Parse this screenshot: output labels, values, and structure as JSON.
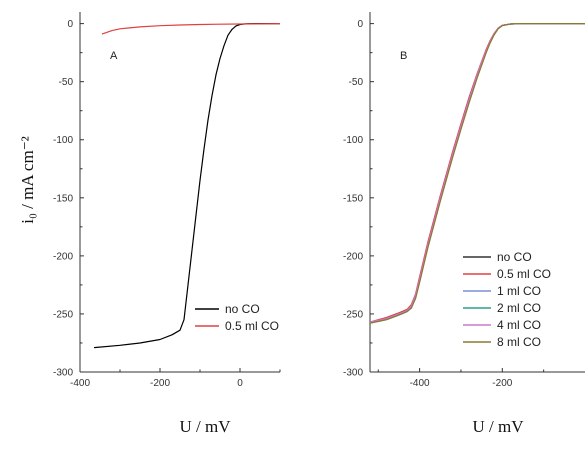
{
  "chart_data": [
    {
      "type": "line",
      "panel_label": "A",
      "xlabel": "U / mV",
      "ylabel": "i₀ / mA cm⁻²",
      "xlim": [
        -400,
        100
      ],
      "ylim": [
        -300,
        10
      ],
      "xticks": [
        -400,
        -200,
        0
      ],
      "yticks": [
        0,
        -50,
        -100,
        -150,
        -200,
        -250,
        -300
      ],
      "legend_position": "bottom-right",
      "series": [
        {
          "name": "no CO",
          "color": "#000000",
          "x": [
            -365,
            -300,
            -250,
            -200,
            -170,
            -150,
            -140,
            -130,
            -120,
            -110,
            -100,
            -90,
            -80,
            -70,
            -60,
            -50,
            -40,
            -30,
            -20,
            -10,
            0,
            10,
            20,
            40,
            60,
            100
          ],
          "y": [
            -279,
            -277,
            -275,
            -272,
            -268,
            -264,
            -255,
            -225,
            -195,
            -165,
            -135,
            -108,
            -83,
            -62,
            -44,
            -30,
            -19,
            -10,
            -5,
            -2,
            -0.8,
            -0.3,
            -0.1,
            0,
            0,
            0
          ]
        },
        {
          "name": "0.5 ml CO",
          "color": "#e04040",
          "x": [
            -345,
            -320,
            -300,
            -250,
            -200,
            -150,
            -100,
            -50,
            0,
            50,
            100
          ],
          "y": [
            -9,
            -6,
            -4.5,
            -2.8,
            -1.8,
            -1.2,
            -0.8,
            -0.5,
            -0.3,
            -0.15,
            0
          ]
        }
      ]
    },
    {
      "type": "line",
      "panel_label": "B",
      "xlabel": "U / mV",
      "xlim": [
        -520,
        0
      ],
      "ylim": [
        -300,
        10
      ],
      "xticks": [
        -400,
        -200
      ],
      "yticks": [
        0,
        -50,
        -100,
        -150,
        -200,
        -250,
        -300
      ],
      "legend_position": "bottom-right",
      "series": [
        {
          "name": "no CO",
          "color": "#333333",
          "x": [
            -520,
            -480,
            -450,
            -430,
            -420,
            -410,
            -400,
            -380,
            -350,
            -320,
            -300,
            -280,
            -260,
            -240,
            -230,
            -220,
            -210,
            -200,
            -180,
            -150,
            -100,
            -50,
            0
          ],
          "y": [
            -257,
            -254,
            -250,
            -247,
            -244,
            -235,
            -220,
            -190,
            -150,
            -112,
            -88,
            -65,
            -43,
            -24,
            -16,
            -9,
            -4,
            -1.5,
            -0.3,
            0,
            0,
            0,
            0
          ]
        },
        {
          "name": "0.5 ml CO",
          "color": "#e04040",
          "x": [
            -520,
            -480,
            -450,
            -430,
            -420,
            -410,
            -400,
            -380,
            -350,
            -320,
            -300,
            -280,
            -260,
            -240,
            -230,
            -220,
            -210,
            -200,
            -180,
            -150,
            -100,
            -50,
            0
          ],
          "y": [
            -257,
            -253,
            -249,
            -246,
            -242,
            -233,
            -218,
            -188,
            -148,
            -110,
            -86,
            -63,
            -42,
            -23,
            -15,
            -8.5,
            -3.8,
            -1.4,
            -0.3,
            0,
            0,
            0,
            0
          ]
        },
        {
          "name": "1 ml CO",
          "color": "#7a8fd6",
          "x": [
            -520,
            -480,
            -450,
            -430,
            -420,
            -410,
            -400,
            -380,
            -350,
            -320,
            -300,
            -280,
            -260,
            -240,
            -230,
            -220,
            -210,
            -200,
            -180,
            -150,
            -100,
            -50,
            0
          ],
          "y": [
            -258,
            -254,
            -250,
            -247,
            -244,
            -235,
            -221,
            -191,
            -151,
            -113,
            -89,
            -66,
            -44,
            -25,
            -16,
            -9,
            -4,
            -1.5,
            -0.3,
            0,
            0,
            0,
            0
          ]
        },
        {
          "name": "2 ml CO",
          "color": "#2e9e8a",
          "x": [
            -520,
            -480,
            -450,
            -430,
            -420,
            -410,
            -400,
            -380,
            -350,
            -320,
            -300,
            -280,
            -260,
            -240,
            -230,
            -220,
            -210,
            -200,
            -180,
            -150,
            -100,
            -50,
            0
          ],
          "y": [
            -258,
            -255,
            -251,
            -248,
            -245,
            -236,
            -222,
            -192,
            -152,
            -114,
            -90,
            -67,
            -45,
            -25,
            -17,
            -9.5,
            -4.2,
            -1.6,
            -0.3,
            0,
            0,
            0,
            0
          ]
        },
        {
          "name": "4 ml CO",
          "color": "#c77ac7",
          "x": [
            -520,
            -480,
            -450,
            -430,
            -420,
            -410,
            -400,
            -380,
            -350,
            -320,
            -300,
            -280,
            -260,
            -240,
            -230,
            -220,
            -210,
            -200,
            -180,
            -150,
            -100,
            -50,
            0
          ],
          "y": [
            -257,
            -254,
            -250,
            -247,
            -243,
            -234,
            -220,
            -190,
            -150,
            -112,
            -88,
            -65,
            -43,
            -24,
            -16,
            -9,
            -4,
            -1.5,
            -0.3,
            0,
            0,
            0,
            0
          ]
        },
        {
          "name": "8 ml CO",
          "color": "#8a7a2e",
          "x": [
            -520,
            -480,
            -450,
            -430,
            -420,
            -410,
            -400,
            -380,
            -350,
            -320,
            -300,
            -280,
            -260,
            -240,
            -230,
            -220,
            -210,
            -200,
            -180,
            -150,
            -100,
            -50,
            0
          ],
          "y": [
            -258,
            -255,
            -251,
            -248,
            -245,
            -237,
            -223,
            -193,
            -153,
            -115,
            -91,
            -68,
            -46,
            -26,
            -17,
            -10,
            -4.5,
            -1.7,
            -0.3,
            0,
            0,
            0,
            0
          ]
        }
      ]
    }
  ]
}
